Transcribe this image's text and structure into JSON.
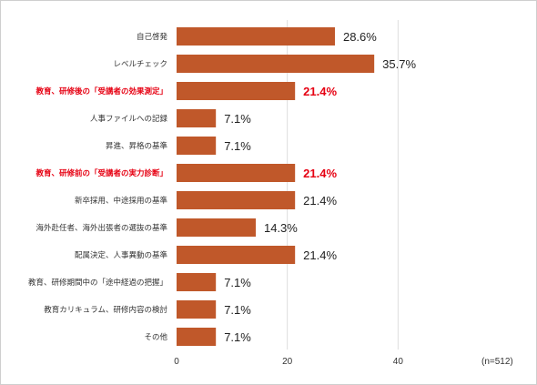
{
  "chart_data": {
    "type": "bar",
    "orientation": "horizontal",
    "categories": [
      "自己啓発",
      "レベルチェック",
      "教育、研修後の「受講者の効果測定」",
      "人事ファイルへの記録",
      "昇進、昇格の基準",
      "教育、研修前の「受講者の実力診断」",
      "新卒採用、中途採用の基準",
      "海外赴任者、海外出張者の選抜の基準",
      "配属決定、人事異動の基準",
      "教育、研修期間中の「途中経過の把握」",
      "教育カリキュラム、研修内容の検討",
      "その他"
    ],
    "values": [
      28.6,
      35.7,
      21.4,
      7.1,
      7.1,
      21.4,
      21.4,
      14.3,
      21.4,
      7.1,
      7.1,
      7.1
    ],
    "value_labels": [
      "28.6%",
      "35.7%",
      "21.4%",
      "7.1%",
      "7.1%",
      "21.4%",
      "21.4%",
      "14.3%",
      "21.4%",
      "7.1%",
      "7.1%",
      "7.1%"
    ],
    "highlighted": [
      false,
      false,
      true,
      false,
      false,
      true,
      false,
      false,
      false,
      false,
      false,
      false
    ],
    "xlim": [
      0,
      60
    ],
    "xticks": [
      0,
      20,
      40
    ],
    "grid": true,
    "note": "(n=512)",
    "colors": {
      "bar": "#c0582a",
      "highlight_text": "#e60012",
      "grid": "#dddddd",
      "text": "#333333"
    }
  }
}
